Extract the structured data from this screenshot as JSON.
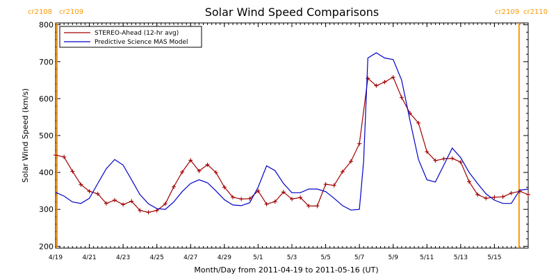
{
  "chart_data": {
    "type": "line",
    "title": "Solar Wind Speed Comparisons",
    "xlabel": "Month/Day from 2011-04-19 to 2011-05-16 (UT)",
    "ylabel": "Solar Wind Speed (km/s)",
    "xlim": [
      "2011-04-19T00:00",
      "2011-05-17T00:00"
    ],
    "ylim": [
      195,
      805
    ],
    "grid": false,
    "legend_position": "top-left",
    "x_ticks": [
      {
        "date": "2011-04-19",
        "label": "4/19"
      },
      {
        "date": "2011-04-21",
        "label": "4/21"
      },
      {
        "date": "2011-04-23",
        "label": "4/23"
      },
      {
        "date": "2011-04-25",
        "label": "4/25"
      },
      {
        "date": "2011-04-27",
        "label": "4/27"
      },
      {
        "date": "2011-04-29",
        "label": "4/29"
      },
      {
        "date": "2011-05-01",
        "label": "5/1"
      },
      {
        "date": "2011-05-03",
        "label": "5/3"
      },
      {
        "date": "2011-05-05",
        "label": "5/5"
      },
      {
        "date": "2011-05-07",
        "label": "5/7"
      },
      {
        "date": "2011-05-09",
        "label": "5/9"
      },
      {
        "date": "2011-05-11",
        "label": "5/11"
      },
      {
        "date": "2011-05-13",
        "label": "5/13"
      },
      {
        "date": "2011-05-15",
        "label": "5/15"
      }
    ],
    "y_ticks": [
      200,
      300,
      400,
      500,
      600,
      700,
      800
    ],
    "rotation_markers": [
      {
        "date": "2011-04-19T02:00",
        "label_left": "cr2108",
        "label_right": "cr2109",
        "color": "#ff9900"
      },
      {
        "date": "2011-05-16T11:00",
        "label_left": "cr2109",
        "label_right": "cr2110",
        "color": "#ff9900"
      }
    ],
    "series": [
      {
        "name": "STEREO-Ahead (12-hr avg)",
        "color": "#a00000",
        "marker": "plus",
        "x": [
          "2011-04-19T00:00",
          "2011-04-19T12:00",
          "2011-04-20T00:00",
          "2011-04-20T12:00",
          "2011-04-21T00:00",
          "2011-04-21T12:00",
          "2011-04-22T00:00",
          "2011-04-22T12:00",
          "2011-04-23T00:00",
          "2011-04-23T12:00",
          "2011-04-24T00:00",
          "2011-04-24T12:00",
          "2011-04-25T00:00",
          "2011-04-25T12:00",
          "2011-04-26T00:00",
          "2011-04-26T12:00",
          "2011-04-27T00:00",
          "2011-04-27T12:00",
          "2011-04-28T00:00",
          "2011-04-28T12:00",
          "2011-04-29T00:00",
          "2011-04-29T12:00",
          "2011-04-30T00:00",
          "2011-04-30T12:00",
          "2011-05-01T00:00",
          "2011-05-01T12:00",
          "2011-05-02T00:00",
          "2011-05-02T12:00",
          "2011-05-03T00:00",
          "2011-05-03T12:00",
          "2011-05-04T00:00",
          "2011-05-04T12:00",
          "2011-05-05T00:00",
          "2011-05-05T12:00",
          "2011-05-06T00:00",
          "2011-05-06T12:00",
          "2011-05-07T00:00",
          "2011-05-07T12:00",
          "2011-05-08T00:00",
          "2011-05-08T12:00",
          "2011-05-09T00:00",
          "2011-05-09T12:00",
          "2011-05-10T00:00",
          "2011-05-10T12:00",
          "2011-05-11T00:00",
          "2011-05-11T12:00",
          "2011-05-12T00:00",
          "2011-05-12T12:00",
          "2011-05-13T00:00",
          "2011-05-13T12:00",
          "2011-05-14T00:00",
          "2011-05-14T12:00",
          "2011-05-15T00:00",
          "2011-05-15T12:00",
          "2011-05-16T00:00",
          "2011-05-16T12:00",
          "2011-05-17T00:00"
        ],
        "y": [
          447,
          442,
          403,
          367,
          349,
          342,
          316,
          325,
          313,
          322,
          297,
          292,
          297,
          315,
          361,
          401,
          433,
          404,
          421,
          400,
          360,
          333,
          328,
          329,
          350,
          314,
          321,
          347,
          328,
          332,
          309,
          309,
          368,
          365,
          402,
          430,
          478,
          655,
          635,
          645,
          658,
          603,
          560,
          534,
          456,
          432,
          437,
          438,
          428,
          375,
          340,
          330,
          333,
          334,
          344,
          349,
          340
        ]
      },
      {
        "name": "Predictive Science MAS Model",
        "color": "#0000c8",
        "marker": "none",
        "x": [
          "2011-04-19T00:00",
          "2011-04-19T12:00",
          "2011-04-20T00:00",
          "2011-04-20T12:00",
          "2011-04-21T00:00",
          "2011-04-21T12:00",
          "2011-04-22T00:00",
          "2011-04-22T12:00",
          "2011-04-23T00:00",
          "2011-04-23T12:00",
          "2011-04-24T00:00",
          "2011-04-24T12:00",
          "2011-04-25T00:00",
          "2011-04-25T12:00",
          "2011-04-26T00:00",
          "2011-04-26T12:00",
          "2011-04-27T00:00",
          "2011-04-27T12:00",
          "2011-04-28T00:00",
          "2011-04-28T12:00",
          "2011-04-29T00:00",
          "2011-04-29T12:00",
          "2011-04-30T00:00",
          "2011-04-30T12:00",
          "2011-05-01T00:00",
          "2011-05-01T12:00",
          "2011-05-02T00:00",
          "2011-05-02T12:00",
          "2011-05-03T00:00",
          "2011-05-03T12:00",
          "2011-05-04T00:00",
          "2011-05-04T12:00",
          "2011-05-05T00:00",
          "2011-05-05T12:00",
          "2011-05-06T00:00",
          "2011-05-06T12:00",
          "2011-05-07T00:00",
          "2011-05-07T06:00",
          "2011-05-07T12:00",
          "2011-05-08T00:00",
          "2011-05-08T12:00",
          "2011-05-09T00:00",
          "2011-05-09T12:00",
          "2011-05-10T00:00",
          "2011-05-10T12:00",
          "2011-05-11T00:00",
          "2011-05-11T12:00",
          "2011-05-12T00:00",
          "2011-05-12T12:00",
          "2011-05-13T00:00",
          "2011-05-13T12:00",
          "2011-05-14T00:00",
          "2011-05-14T12:00",
          "2011-05-15T00:00",
          "2011-05-15T12:00",
          "2011-05-16T00:00",
          "2011-05-16T12:00",
          "2011-05-17T00:00"
        ],
        "y": [
          346,
          336,
          320,
          316,
          330,
          370,
          410,
          435,
          420,
          380,
          340,
          315,
          302,
          300,
          320,
          348,
          370,
          380,
          372,
          350,
          326,
          312,
          310,
          318,
          360,
          418,
          405,
          370,
          345,
          345,
          355,
          355,
          348,
          330,
          310,
          298,
          300,
          430,
          710,
          724,
          710,
          706,
          650,
          540,
          435,
          380,
          374,
          420,
          466,
          440,
          400,
          370,
          342,
          325,
          316,
          316,
          352,
          355
        ]
      }
    ]
  }
}
